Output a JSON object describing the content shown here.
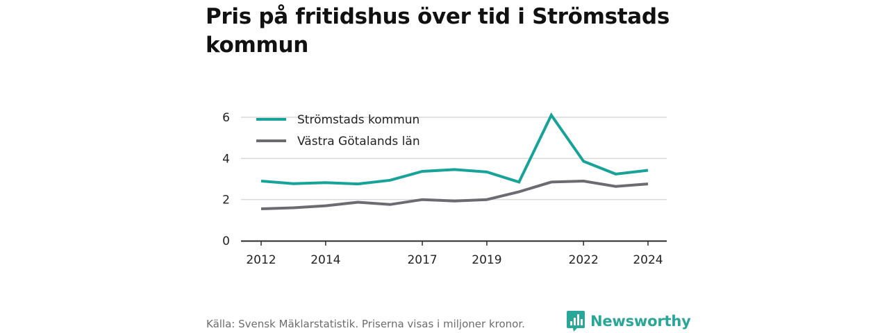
{
  "title": "Pris på fritidshus över tid i Strömstads kommun",
  "source": "Källa: Svensk Mäklarstatistik. Priserna visas i miljoner kronor.",
  "brand": {
    "name": "Newsworthy",
    "icon": "newsworthy-logo-icon",
    "color": "#29a697"
  },
  "chart_data": {
    "type": "line",
    "title": "Pris på fritidshus över tid i Strömstads kommun",
    "xlabel": "",
    "ylabel": "",
    "x": [
      2012,
      2013,
      2014,
      2015,
      2016,
      2017,
      2018,
      2019,
      2020,
      2021,
      2022,
      2023,
      2024
    ],
    "x_ticks": [
      "2012",
      "2014",
      "2017",
      "2019",
      "2022",
      "2024"
    ],
    "y_ticks": [
      "0",
      "2",
      "4",
      "6"
    ],
    "ylim": [
      0,
      6.6
    ],
    "grid": true,
    "legend_position": "top-left",
    "series": [
      {
        "name": "Strömstads kommun",
        "color": "#17a398",
        "values": [
          2.9,
          2.77,
          2.82,
          2.76,
          2.94,
          3.37,
          3.46,
          3.34,
          2.85,
          6.1,
          3.86,
          3.24,
          3.42
        ]
      },
      {
        "name": "Västra Götalands län",
        "color": "#6d6b72",
        "values": [
          1.55,
          1.6,
          1.7,
          1.87,
          1.76,
          2.0,
          1.93,
          2.0,
          2.38,
          2.85,
          2.9,
          2.64,
          2.76
        ]
      }
    ]
  }
}
